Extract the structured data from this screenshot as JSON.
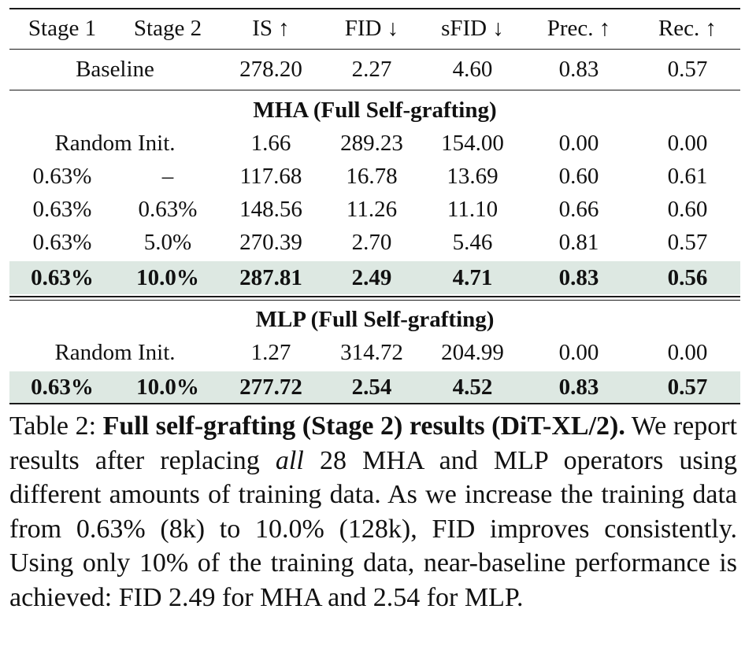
{
  "table": {
    "headers": [
      "Stage 1",
      "Stage 2",
      "IS ↑",
      "FID ↓",
      "sFID ↓",
      "Prec. ↑",
      "Rec. ↑"
    ],
    "baseline": {
      "label": "Baseline",
      "IS": "278.20",
      "FID": "2.27",
      "sFID": "4.60",
      "Prec": "0.83",
      "Rec": "0.57"
    },
    "sections": [
      {
        "title": "MHA (Full Self-grafting)",
        "random_init": {
          "label": "Random Init.",
          "IS": "1.66",
          "FID": "289.23",
          "sFID": "154.00",
          "Prec": "0.00",
          "Rec": "0.00"
        },
        "rows": [
          {
            "stage1": "0.63%",
            "stage2": "–",
            "IS": "117.68",
            "FID": "16.78",
            "sFID": "13.69",
            "Prec": "0.60",
            "Rec": "0.61"
          },
          {
            "stage1": "0.63%",
            "stage2": "0.63%",
            "IS": "148.56",
            "FID": "11.26",
            "sFID": "11.10",
            "Prec": "0.66",
            "Rec": "0.60"
          },
          {
            "stage1": "0.63%",
            "stage2": "5.0%",
            "IS": "270.39",
            "FID": "2.70",
            "sFID": "5.46",
            "Prec": "0.81",
            "Rec": "0.57"
          },
          {
            "stage1": "0.63%",
            "stage2": "10.0%",
            "IS": "287.81",
            "FID": "2.49",
            "sFID": "4.71",
            "Prec": "0.83",
            "Rec": "0.56",
            "highlight": true
          }
        ]
      },
      {
        "title": "MLP (Full Self-grafting)",
        "random_init": {
          "label": "Random Init.",
          "IS": "1.27",
          "FID": "314.72",
          "sFID": "204.99",
          "Prec": "0.00",
          "Rec": "0.00"
        },
        "rows": [
          {
            "stage1": "0.63%",
            "stage2": "10.0%",
            "IS": "277.72",
            "FID": "2.54",
            "sFID": "4.52",
            "Prec": "0.83",
            "Rec": "0.57",
            "highlight": true
          }
        ]
      }
    ],
    "highlight_color": "#dde8e2"
  },
  "caption": {
    "label": "Table 2: ",
    "title": "Full self-grafting (Stage 2) results (DiT-XL/2).",
    "text_1": " We report results after replacing ",
    "emphasis": "all",
    "text_2": " 28 MHA and MLP operators using different amounts of training data. As we increase the training data from 0.63% (8k) to 10.0% (128k), FID improves consistently. Using only 10% of the training data, near-baseline performance is achieved: FID 2.49 for MHA and 2.54 for MLP."
  }
}
